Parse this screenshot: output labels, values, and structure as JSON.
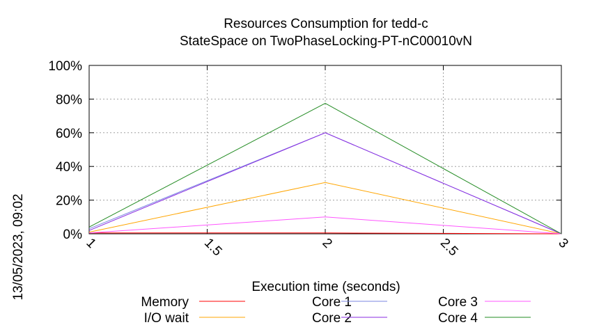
{
  "chart_data": {
    "type": "line",
    "title": "Resources Consumption for tedd-c",
    "subtitle": "StateSpace on TwoPhaseLocking-PT-nC00010vN",
    "xlabel": "Execution time (seconds)",
    "ylabel": "",
    "timestamp": "13/05/2023, 09:02",
    "xlim": [
      1,
      3
    ],
    "ylim": [
      0,
      100
    ],
    "x_ticks": [
      {
        "value": 1,
        "label": "1"
      },
      {
        "value": 1.5,
        "label": "1.5"
      },
      {
        "value": 2,
        "label": "2"
      },
      {
        "value": 2.5,
        "label": "2.5"
      },
      {
        "value": 3,
        "label": "3"
      }
    ],
    "y_ticks": [
      {
        "value": 0,
        "label": "0%"
      },
      {
        "value": 20,
        "label": "20%"
      },
      {
        "value": 40,
        "label": "40%"
      },
      {
        "value": 60,
        "label": "60%"
      },
      {
        "value": 80,
        "label": "80%"
      },
      {
        "value": 100,
        "label": "100%"
      }
    ],
    "grid": true,
    "legend_position": "bottom",
    "x": [
      1,
      2,
      3
    ],
    "series": [
      {
        "name": "Memory",
        "color": "#ff0000",
        "values": [
          0.5,
          0.5,
          0
        ]
      },
      {
        "name": "I/O wait",
        "color": "#ffa500",
        "values": [
          1,
          30.5,
          0
        ]
      },
      {
        "name": "Core 1",
        "color": "#7a86e0",
        "values": [
          3,
          60,
          0
        ]
      },
      {
        "name": "Core 2",
        "color": "#8a2be2",
        "values": [
          2,
          60,
          0
        ]
      },
      {
        "name": "Core 3",
        "color": "#ff55ff",
        "values": [
          0.5,
          10,
          0
        ]
      },
      {
        "name": "Core 4",
        "color": "#228b22",
        "values": [
          4,
          77.5,
          0
        ]
      }
    ]
  }
}
